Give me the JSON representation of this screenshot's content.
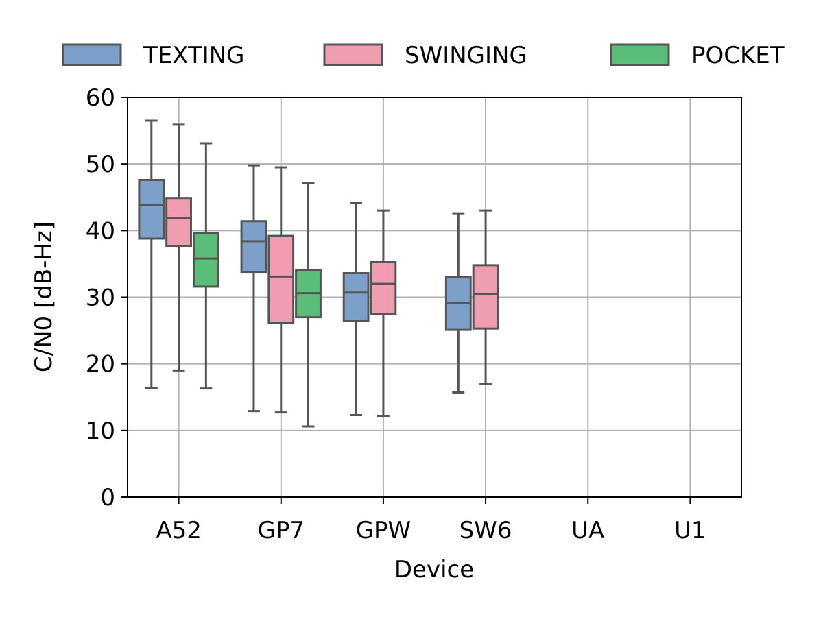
{
  "chart_data": {
    "type": "box",
    "xlabel": "Device",
    "ylabel": "C/N0 [dB-Hz]",
    "ylim": [
      0,
      60
    ],
    "yticks": [
      0,
      10,
      20,
      30,
      40,
      50,
      60
    ],
    "categories": [
      "A52",
      "GP7",
      "GPW",
      "SW6",
      "UA",
      "U1"
    ],
    "grid": true,
    "legend_position": "top",
    "series": [
      {
        "name": "TEXTING",
        "color": "#7da0ca",
        "boxes": [
          {
            "category": "A52",
            "whisker_low": 16.4,
            "q1": 38.8,
            "median": 43.8,
            "q3": 47.6,
            "whisker_high": 56.5
          },
          {
            "category": "GP7",
            "whisker_low": 12.9,
            "q1": 33.8,
            "median": 38.4,
            "q3": 41.4,
            "whisker_high": 49.8
          },
          {
            "category": "GPW",
            "whisker_low": 12.3,
            "q1": 26.4,
            "median": 30.7,
            "q3": 33.6,
            "whisker_high": 44.2
          },
          {
            "category": "SW6",
            "whisker_low": 15.7,
            "q1": 25.1,
            "median": 29.1,
            "q3": 33.0,
            "whisker_high": 42.6
          }
        ]
      },
      {
        "name": "SWINGING",
        "color": "#f09db2",
        "boxes": [
          {
            "category": "A52",
            "whisker_low": 19.0,
            "q1": 37.7,
            "median": 41.9,
            "q3": 44.8,
            "whisker_high": 55.9
          },
          {
            "category": "GP7",
            "whisker_low": 12.7,
            "q1": 26.1,
            "median": 33.1,
            "q3": 39.2,
            "whisker_high": 49.5
          },
          {
            "category": "GPW",
            "whisker_low": 12.2,
            "q1": 27.5,
            "median": 32.0,
            "q3": 35.3,
            "whisker_high": 43.0
          },
          {
            "category": "SW6",
            "whisker_low": 17.0,
            "q1": 25.3,
            "median": 30.5,
            "q3": 34.8,
            "whisker_high": 43.0
          }
        ]
      },
      {
        "name": "POCKET",
        "color": "#5abd78",
        "boxes": [
          {
            "category": "A52",
            "whisker_low": 16.3,
            "q1": 31.6,
            "median": 35.8,
            "q3": 39.6,
            "whisker_high": 53.1
          },
          {
            "category": "GP7",
            "whisker_low": 10.6,
            "q1": 27.0,
            "median": 30.6,
            "q3": 34.1,
            "whisker_high": 47.1
          }
        ]
      }
    ]
  }
}
